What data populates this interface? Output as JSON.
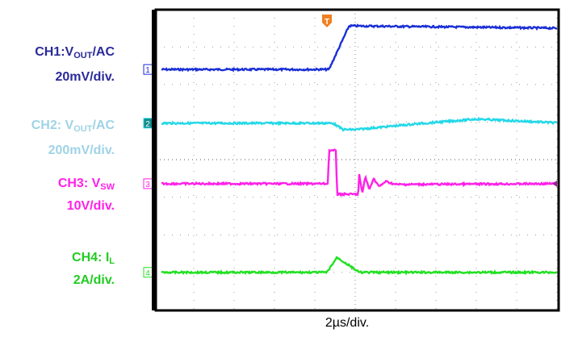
{
  "chart_data": {
    "type": "line",
    "xlabel": "2µs/div.",
    "time_per_div_us": 2,
    "xlim_us": [
      -10,
      10
    ],
    "ylim_div": [
      -4,
      4
    ],
    "grid": true,
    "trigger_marker": "T",
    "channels": [
      {
        "id": "1",
        "name_main": "CH1:V",
        "name_sub": "OUT",
        "name_tail": "/AC",
        "scale": "20mV/div.",
        "color": "#1a2fd6",
        "label_color": "#2a2a9a",
        "points": [
          [
            -10,
            2.4
          ],
          [
            -1.3,
            2.4
          ],
          [
            -0.3,
            3.56
          ],
          [
            10,
            3.5
          ]
        ]
      },
      {
        "id": "2",
        "name_main": "CH2: V",
        "name_sub": "OUT",
        "name_tail": "/AC",
        "scale": "200mV/div.",
        "color": "#22d8e8",
        "label_color": "#9fd3e6",
        "points": [
          [
            -10,
            0.97
          ],
          [
            -1.1,
            0.97
          ],
          [
            -0.6,
            0.8
          ],
          [
            0,
            0.8
          ],
          [
            3,
            0.95
          ],
          [
            6,
            1.08
          ],
          [
            8,
            1.03
          ],
          [
            10,
            0.98
          ]
        ]
      },
      {
        "id": "3",
        "name_main": "CH3: V",
        "name_sub": "SW",
        "name_tail": "",
        "scale": "10V/div.",
        "color": "#ff20e8",
        "label_color": "#ff20e8",
        "points": [
          [
            -10,
            -0.64
          ],
          [
            -1.35,
            -0.64
          ],
          [
            -1.3,
            0.24
          ],
          [
            -0.95,
            0.24
          ],
          [
            -0.9,
            -0.92
          ],
          [
            0.15,
            -0.92
          ],
          [
            0.2,
            -0.4
          ],
          [
            0.35,
            -0.9
          ],
          [
            0.5,
            -0.45
          ],
          [
            0.7,
            -0.8
          ],
          [
            0.9,
            -0.5
          ],
          [
            1.2,
            -0.72
          ],
          [
            1.5,
            -0.58
          ],
          [
            2,
            -0.66
          ],
          [
            10,
            -0.64
          ]
        ]
      },
      {
        "id": "4",
        "name_main": "CH4: I",
        "name_sub": "L",
        "name_tail": "",
        "scale": "2A/div.",
        "color": "#22e022",
        "label_color": "#22cc22",
        "points": [
          [
            -10,
            -3.0
          ],
          [
            -1.4,
            -3.0
          ],
          [
            -0.9,
            -2.6
          ],
          [
            0.2,
            -3.0
          ],
          [
            10,
            -3.0
          ]
        ]
      }
    ]
  }
}
